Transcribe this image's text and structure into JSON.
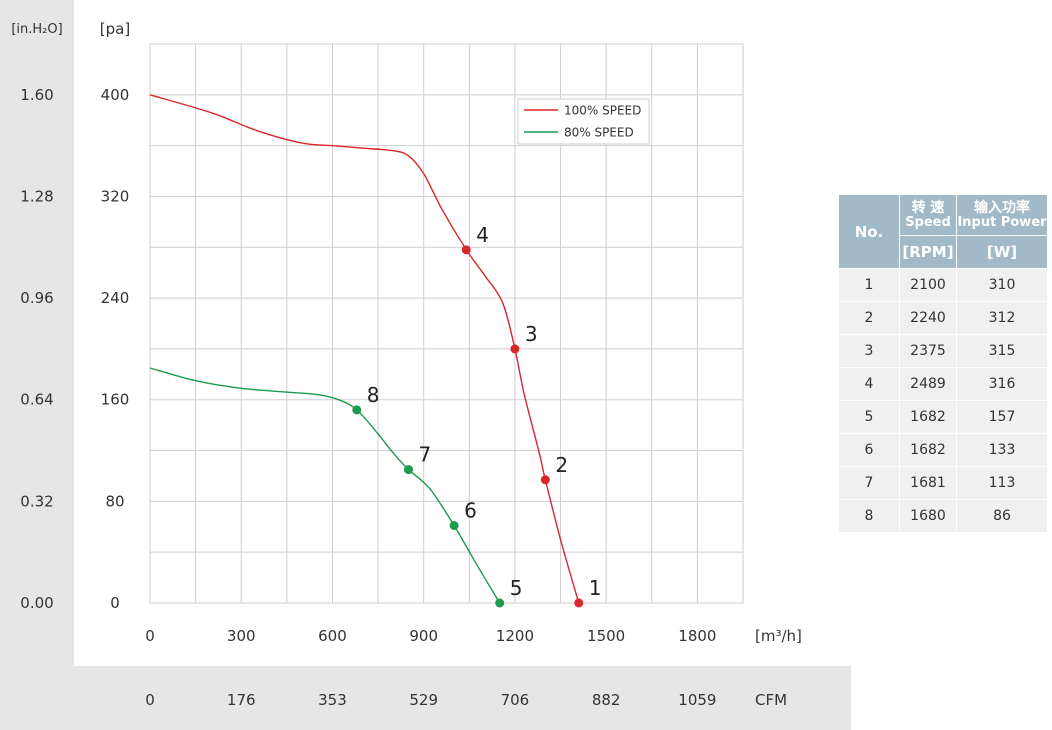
{
  "chart_data": {
    "type": "line",
    "xlabel": "[m³/h]",
    "ylabel_left": "[in.H₂O]",
    "ylabel": "[pa]",
    "x_ticks": [
      "0",
      "300",
      "600",
      "900",
      "1200",
      "1500",
      "1800"
    ],
    "x_ticks_cfm": [
      "0",
      "176",
      "353",
      "529",
      "706",
      "882",
      "1059"
    ],
    "cfm_label": "CFM",
    "y_ticks": [
      "0",
      "80",
      "160",
      "240",
      "320",
      "400"
    ],
    "y_ticks_inh2o": [
      "0.00",
      "0.32",
      "0.64",
      "0.96",
      "1.28",
      "1.60"
    ],
    "xlim": [
      0,
      1950
    ],
    "ylim": [
      0,
      440
    ],
    "grid": true,
    "legend_position": "top-right",
    "series": [
      {
        "name": "100% SPEED",
        "color": "#d9262c",
        "curve": [
          [
            0,
            400
          ],
          [
            200,
            386
          ],
          [
            350,
            372
          ],
          [
            500,
            362
          ],
          [
            600,
            360
          ],
          [
            700,
            358
          ],
          [
            800,
            356
          ],
          [
            850,
            352
          ],
          [
            900,
            338
          ],
          [
            960,
            310
          ],
          [
            1040,
            278
          ],
          [
            1100,
            258
          ],
          [
            1160,
            236
          ],
          [
            1200,
            200
          ],
          [
            1230,
            165
          ],
          [
            1280,
            118
          ],
          [
            1300,
            97
          ],
          [
            1350,
            50
          ],
          [
            1410,
            0
          ]
        ],
        "points": [
          {
            "label": "1",
            "x": 1410,
            "y": 0
          },
          {
            "label": "2",
            "x": 1300,
            "y": 97
          },
          {
            "label": "3",
            "x": 1200,
            "y": 200
          },
          {
            "label": "4",
            "x": 1040,
            "y": 278
          }
        ]
      },
      {
        "name": "80%  SPEED",
        "color": "#1c9a4e",
        "curve": [
          [
            0,
            185
          ],
          [
            150,
            175
          ],
          [
            300,
            169
          ],
          [
            450,
            166
          ],
          [
            550,
            164
          ],
          [
            620,
            160
          ],
          [
            680,
            152
          ],
          [
            750,
            133
          ],
          [
            800,
            118
          ],
          [
            850,
            105
          ],
          [
            920,
            90
          ],
          [
            1000,
            61
          ],
          [
            1070,
            32
          ],
          [
            1150,
            0
          ]
        ],
        "points": [
          {
            "label": "5",
            "x": 1150,
            "y": 0
          },
          {
            "label": "6",
            "x": 1000,
            "y": 61
          },
          {
            "label": "7",
            "x": 850,
            "y": 105
          },
          {
            "label": "8",
            "x": 680,
            "y": 152
          }
        ]
      }
    ]
  },
  "table": {
    "header_no": "No.",
    "header_speed_cn": "转 速",
    "header_speed_en": "Speed",
    "header_power_cn": "输入功率",
    "header_power_en": "Input Power",
    "unit_speed": "[RPM]",
    "unit_power": "[W]",
    "rows": [
      {
        "no": "1",
        "speed": "2100",
        "power": "310"
      },
      {
        "no": "2",
        "speed": "2240",
        "power": "312"
      },
      {
        "no": "3",
        "speed": "2375",
        "power": "315"
      },
      {
        "no": "4",
        "speed": "2489",
        "power": "316"
      },
      {
        "no": "5",
        "speed": "1682",
        "power": "157"
      },
      {
        "no": "6",
        "speed": "1682",
        "power": "133"
      },
      {
        "no": "7",
        "speed": "1681",
        "power": "113"
      },
      {
        "no": "8",
        "speed": "1680",
        "power": "86"
      }
    ]
  }
}
